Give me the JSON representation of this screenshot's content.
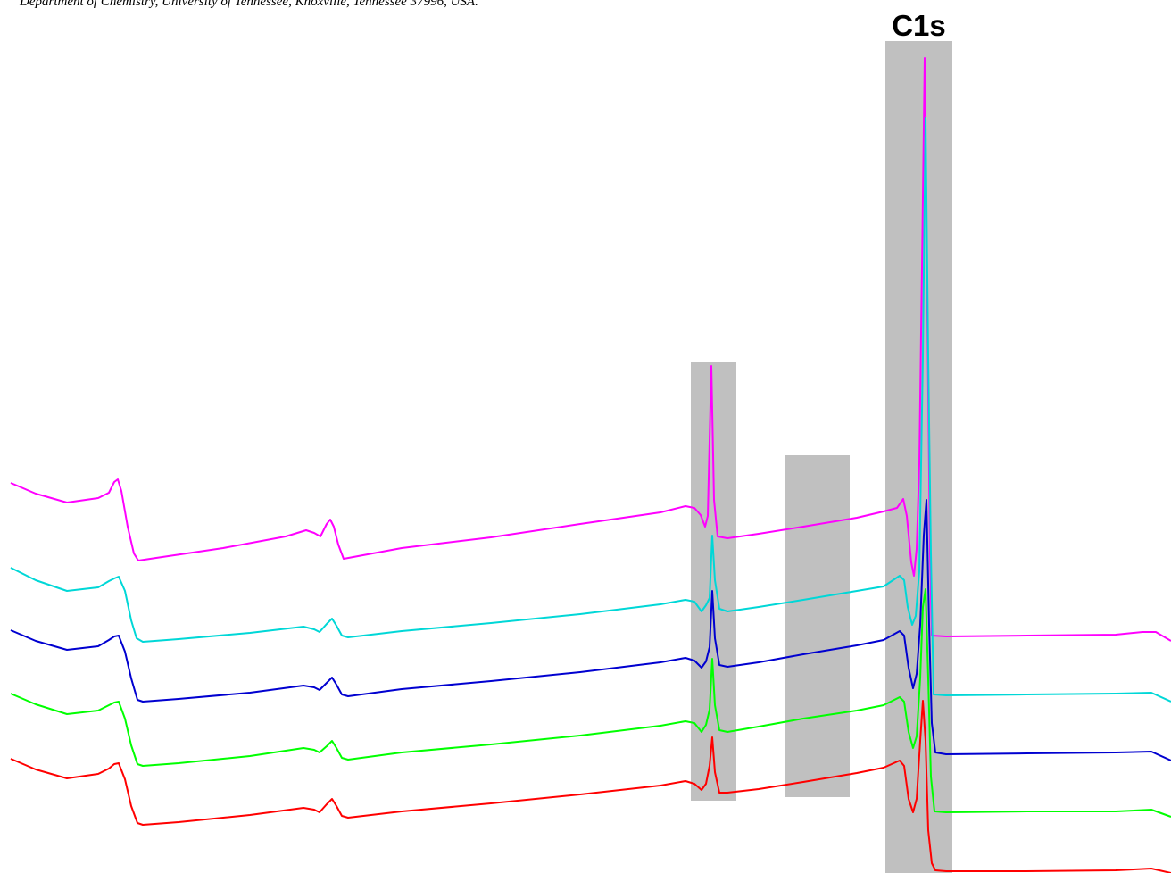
{
  "header": {
    "affiliation": "Department of Chemistry, University of Tennessee, Knoxville, Tennessee 37996, USA."
  },
  "chart_data": {
    "type": "line",
    "title": "",
    "xlabel": "",
    "ylabel": "",
    "grid": false,
    "axes_visible": false,
    "annotations": [
      {
        "text": "C1s",
        "region": 2
      }
    ],
    "highlight_regions": [
      {
        "x_start": 774,
        "x_end": 825,
        "y_top": 406,
        "y_bottom": 897,
        "color": "#c0c0c0"
      },
      {
        "x_start": 880,
        "x_end": 952,
        "y_top": 510,
        "y_bottom": 893,
        "color": "#c0c0c0"
      },
      {
        "x_start": 992,
        "x_end": 1067,
        "y_top": 46,
        "y_bottom": 978,
        "color": "#c0c0c0"
      }
    ],
    "series": [
      {
        "color": "#ff00ff",
        "points": [
          [
            12,
            541
          ],
          [
            40,
            553
          ],
          [
            75,
            563
          ],
          [
            110,
            558
          ],
          [
            122,
            552
          ],
          [
            128,
            540
          ],
          [
            132,
            537
          ],
          [
            136,
            550
          ],
          [
            143,
            590
          ],
          [
            150,
            620
          ],
          [
            155,
            628
          ],
          [
            175,
            625
          ],
          [
            250,
            614
          ],
          [
            320,
            601
          ],
          [
            343,
            594
          ],
          [
            352,
            597
          ],
          [
            359,
            601
          ],
          [
            366,
            587
          ],
          [
            370,
            582
          ],
          [
            374,
            590
          ],
          [
            379,
            610
          ],
          [
            385,
            626
          ],
          [
            450,
            614
          ],
          [
            550,
            602
          ],
          [
            650,
            587
          ],
          [
            740,
            574
          ],
          [
            768,
            567
          ],
          [
            778,
            569
          ],
          [
            785,
            577
          ],
          [
            790,
            590
          ],
          [
            793,
            578
          ],
          [
            797,
            410
          ],
          [
            800,
            560
          ],
          [
            804,
            601
          ],
          [
            815,
            603
          ],
          [
            850,
            598
          ],
          [
            900,
            590
          ],
          [
            960,
            580
          ],
          [
            990,
            573
          ],
          [
            1005,
            569
          ],
          [
            1012,
            559
          ],
          [
            1016,
            578
          ],
          [
            1021,
            630
          ],
          [
            1024,
            645
          ],
          [
            1027,
            615
          ],
          [
            1030,
            520
          ],
          [
            1033,
            300
          ],
          [
            1036,
            65
          ],
          [
            1039,
            350
          ],
          [
            1042,
            620
          ],
          [
            1044,
            712
          ],
          [
            1060,
            713
          ],
          [
            1150,
            712
          ],
          [
            1250,
            711
          ],
          [
            1280,
            708
          ],
          [
            1295,
            708
          ],
          [
            1312,
            718
          ]
        ]
      },
      {
        "color": "#00d7d7",
        "points": [
          [
            12,
            636
          ],
          [
            40,
            650
          ],
          [
            75,
            662
          ],
          [
            110,
            658
          ],
          [
            122,
            651
          ],
          [
            128,
            648
          ],
          [
            133,
            646
          ],
          [
            140,
            662
          ],
          [
            147,
            695
          ],
          [
            153,
            715
          ],
          [
            160,
            719
          ],
          [
            200,
            716
          ],
          [
            280,
            709
          ],
          [
            340,
            702
          ],
          [
            352,
            705
          ],
          [
            358,
            708
          ],
          [
            366,
            699
          ],
          [
            372,
            693
          ],
          [
            377,
            701
          ],
          [
            383,
            712
          ],
          [
            390,
            714
          ],
          [
            450,
            707
          ],
          [
            550,
            698
          ],
          [
            650,
            688
          ],
          [
            740,
            677
          ],
          [
            768,
            672
          ],
          [
            778,
            674
          ],
          [
            786,
            685
          ],
          [
            791,
            678
          ],
          [
            795,
            670
          ],
          [
            798,
            600
          ],
          [
            801,
            650
          ],
          [
            806,
            682
          ],
          [
            815,
            685
          ],
          [
            850,
            680
          ],
          [
            900,
            672
          ],
          [
            960,
            662
          ],
          [
            990,
            657
          ],
          [
            1008,
            645
          ],
          [
            1013,
            650
          ],
          [
            1017,
            680
          ],
          [
            1022,
            700
          ],
          [
            1026,
            690
          ],
          [
            1030,
            640
          ],
          [
            1034,
            400
          ],
          [
            1037,
            132
          ],
          [
            1040,
            400
          ],
          [
            1043,
            620
          ],
          [
            1046,
            778
          ],
          [
            1060,
            779
          ],
          [
            1150,
            778
          ],
          [
            1250,
            777
          ],
          [
            1290,
            776
          ],
          [
            1312,
            786
          ]
        ]
      },
      {
        "color": "#0000d0",
        "points": [
          [
            12,
            706
          ],
          [
            40,
            718
          ],
          [
            75,
            728
          ],
          [
            110,
            724
          ],
          [
            122,
            717
          ],
          [
            128,
            713
          ],
          [
            133,
            712
          ],
          [
            140,
            730
          ],
          [
            147,
            760
          ],
          [
            154,
            784
          ],
          [
            160,
            786
          ],
          [
            200,
            783
          ],
          [
            280,
            776
          ],
          [
            340,
            768
          ],
          [
            352,
            770
          ],
          [
            358,
            773
          ],
          [
            366,
            765
          ],
          [
            372,
            759
          ],
          [
            377,
            767
          ],
          [
            383,
            778
          ],
          [
            390,
            780
          ],
          [
            450,
            772
          ],
          [
            550,
            763
          ],
          [
            650,
            753
          ],
          [
            740,
            742
          ],
          [
            768,
            737
          ],
          [
            778,
            740
          ],
          [
            786,
            748
          ],
          [
            791,
            741
          ],
          [
            795,
            725
          ],
          [
            798,
            662
          ],
          [
            801,
            715
          ],
          [
            806,
            745
          ],
          [
            815,
            747
          ],
          [
            850,
            742
          ],
          [
            900,
            733
          ],
          [
            960,
            723
          ],
          [
            990,
            717
          ],
          [
            1008,
            707
          ],
          [
            1013,
            712
          ],
          [
            1018,
            748
          ],
          [
            1023,
            771
          ],
          [
            1027,
            755
          ],
          [
            1031,
            700
          ],
          [
            1035,
            600
          ],
          [
            1038,
            560
          ],
          [
            1041,
            700
          ],
          [
            1044,
            810
          ],
          [
            1048,
            843
          ],
          [
            1060,
            845
          ],
          [
            1150,
            844
          ],
          [
            1250,
            843
          ],
          [
            1290,
            842
          ],
          [
            1312,
            852
          ]
        ]
      },
      {
        "color": "#00ff00",
        "points": [
          [
            12,
            777
          ],
          [
            40,
            789
          ],
          [
            75,
            800
          ],
          [
            110,
            796
          ],
          [
            122,
            790
          ],
          [
            128,
            787
          ],
          [
            133,
            786
          ],
          [
            140,
            805
          ],
          [
            147,
            835
          ],
          [
            154,
            856
          ],
          [
            160,
            858
          ],
          [
            200,
            855
          ],
          [
            280,
            847
          ],
          [
            340,
            838
          ],
          [
            352,
            840
          ],
          [
            358,
            843
          ],
          [
            366,
            836
          ],
          [
            372,
            830
          ],
          [
            377,
            838
          ],
          [
            383,
            849
          ],
          [
            390,
            851
          ],
          [
            450,
            843
          ],
          [
            550,
            834
          ],
          [
            650,
            824
          ],
          [
            740,
            813
          ],
          [
            768,
            808
          ],
          [
            778,
            810
          ],
          [
            786,
            820
          ],
          [
            791,
            812
          ],
          [
            795,
            795
          ],
          [
            798,
            738
          ],
          [
            801,
            790
          ],
          [
            806,
            818
          ],
          [
            815,
            820
          ],
          [
            850,
            814
          ],
          [
            900,
            805
          ],
          [
            960,
            796
          ],
          [
            990,
            790
          ],
          [
            1008,
            781
          ],
          [
            1013,
            786
          ],
          [
            1018,
            820
          ],
          [
            1023,
            838
          ],
          [
            1027,
            825
          ],
          [
            1031,
            760
          ],
          [
            1034,
            680
          ],
          [
            1037,
            660
          ],
          [
            1040,
            760
          ],
          [
            1043,
            870
          ],
          [
            1047,
            909
          ],
          [
            1060,
            910
          ],
          [
            1150,
            909
          ],
          [
            1250,
            909
          ],
          [
            1290,
            907
          ],
          [
            1312,
            915
          ]
        ]
      },
      {
        "color": "#ff0000",
        "points": [
          [
            12,
            850
          ],
          [
            40,
            862
          ],
          [
            75,
            872
          ],
          [
            110,
            867
          ],
          [
            122,
            861
          ],
          [
            128,
            856
          ],
          [
            133,
            855
          ],
          [
            140,
            873
          ],
          [
            147,
            903
          ],
          [
            154,
            922
          ],
          [
            160,
            924
          ],
          [
            200,
            921
          ],
          [
            280,
            913
          ],
          [
            340,
            905
          ],
          [
            352,
            907
          ],
          [
            358,
            910
          ],
          [
            366,
            901
          ],
          [
            372,
            895
          ],
          [
            377,
            903
          ],
          [
            383,
            914
          ],
          [
            390,
            916
          ],
          [
            450,
            909
          ],
          [
            550,
            900
          ],
          [
            650,
            890
          ],
          [
            740,
            880
          ],
          [
            768,
            875
          ],
          [
            778,
            878
          ],
          [
            786,
            885
          ],
          [
            791,
            878
          ],
          [
            795,
            858
          ],
          [
            798,
            826
          ],
          [
            801,
            865
          ],
          [
            806,
            888
          ],
          [
            815,
            888
          ],
          [
            850,
            884
          ],
          [
            900,
            876
          ],
          [
            960,
            866
          ],
          [
            990,
            860
          ],
          [
            1008,
            852
          ],
          [
            1013,
            858
          ],
          [
            1018,
            895
          ],
          [
            1023,
            910
          ],
          [
            1027,
            895
          ],
          [
            1031,
            830
          ],
          [
            1034,
            785
          ],
          [
            1037,
            830
          ],
          [
            1040,
            930
          ],
          [
            1044,
            967
          ],
          [
            1048,
            975
          ],
          [
            1060,
            976
          ],
          [
            1150,
            976
          ],
          [
            1250,
            975
          ],
          [
            1290,
            973
          ],
          [
            1312,
            978
          ]
        ]
      }
    ]
  }
}
